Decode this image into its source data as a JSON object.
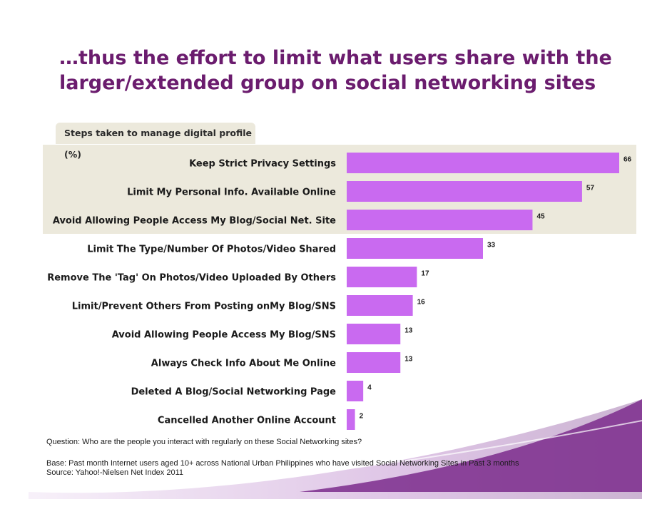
{
  "title": "…thus the effort to limit what users share with the larger/extended group on social networking sites",
  "subtitle": "Steps taken to manage digital profile (%)",
  "chart_data": {
    "type": "bar",
    "orientation": "horizontal",
    "categories": [
      "Keep Strict Privacy Settings",
      "Limit My Personal Info. Available Online",
      "Avoid Allowing People Access My Blog/Social Net. Site",
      "Limit The Type/Number Of Photos/Video Shared",
      "Remove The 'Tag' On Photos/Video Uploaded By Others",
      "Limit/Prevent Others From Posting onMy Blog/SNS",
      "Avoid Allowing People Access My Blog/SNS",
      "Always Check Info About Me Online",
      "Deleted A Blog/Social Networking Page",
      "Cancelled Another Online Account"
    ],
    "values": [
      66,
      57,
      45,
      33,
      17,
      16,
      13,
      13,
      4,
      2
    ],
    "highlighted_count": 3,
    "bar_color": "#c96af0",
    "highlight_color": "#ece9dc",
    "xlim": [
      0,
      66
    ]
  },
  "notes": {
    "question": "Question: Who are the people you interact with regularly on these Social Networking sites?",
    "base": "Base: Past month Internet users aged 10+ across National Urban Philippines who have visited Social Networking Sites in Past 3 months",
    "source": "Source: Yahoo!-Nielsen Net Index 2011"
  },
  "colors": {
    "title": "#6b1c6e",
    "swoosh": "#7b2c8c"
  }
}
